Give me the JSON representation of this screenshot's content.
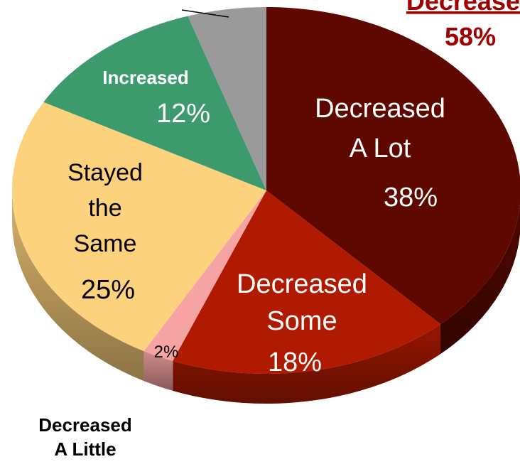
{
  "chart_data": {
    "type": "pie",
    "categories": [
      "Decreased\nA Lot",
      "Decreased\nSome",
      "Decreased\nA Little",
      "Stayed\nthe\nSame",
      "Increased",
      null
    ],
    "values": [
      38,
      18,
      2,
      25,
      12,
      5
    ],
    "value_labels": [
      "38%",
      "18%",
      "2%",
      "25%",
      "12%",
      null
    ],
    "colors": [
      "#5e0800",
      "#b01a00",
      "#f5a3a3",
      "#fdd27d",
      "#3d9a6c",
      "#9a9a9a"
    ],
    "start_angle": 0,
    "direction": "clockwise",
    "annotations": [
      "Decrease",
      "58%"
    ]
  }
}
